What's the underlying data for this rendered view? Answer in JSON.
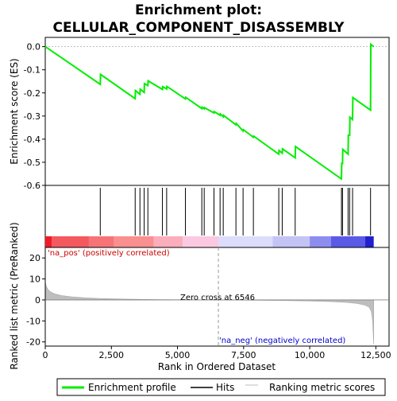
{
  "chart_data": {
    "type": "line",
    "title": "Enrichment plot: CELLULAR_COMPONENT_DISASSEMBLY",
    "title_lines": [
      "Enrichment plot:",
      "CELLULAR_COMPONENT_DISASSEMBLY"
    ],
    "top_panel": {
      "ylabel": "Enrichment score (ES)",
      "ylim": [
        -0.6,
        0.04
      ],
      "yticks": [
        0.0,
        -0.1,
        -0.2,
        -0.3,
        -0.4,
        -0.5,
        -0.6
      ],
      "ytick_labels": [
        "0.0",
        "-0.1",
        "-0.2",
        "-0.3",
        "-0.4",
        "-0.5",
        "-0.6"
      ],
      "line_color": "#00ee00",
      "series": [
        {
          "name": "Enrichment profile",
          "x": [
            0,
            2080,
            2090,
            3400,
            3410,
            3580,
            3590,
            3740,
            3750,
            3880,
            3890,
            4430,
            4440,
            4590,
            4600,
            5300,
            5310,
            5920,
            5930,
            6010,
            6020,
            6380,
            6390,
            6610,
            6620,
            6730,
            6740,
            7210,
            7220,
            7480,
            7490,
            7870,
            7880,
            8830,
            8840,
            8960,
            8970,
            9450,
            9460,
            11200,
            11210,
            11240,
            11250,
            11450,
            11460,
            11510,
            11520,
            11620,
            11630,
            12300,
            12310,
            12420
          ],
          "y": [
            0.0,
            -0.163,
            -0.12,
            -0.225,
            -0.19,
            -0.206,
            -0.184,
            -0.198,
            -0.16,
            -0.168,
            -0.148,
            -0.185,
            -0.173,
            -0.183,
            -0.172,
            -0.226,
            -0.219,
            -0.268,
            -0.262,
            -0.269,
            -0.264,
            -0.287,
            -0.281,
            -0.297,
            -0.291,
            -0.303,
            -0.297,
            -0.338,
            -0.332,
            -0.365,
            -0.359,
            -0.392,
            -0.387,
            -0.465,
            -0.449,
            -0.461,
            -0.442,
            -0.481,
            -0.432,
            -0.572,
            -0.505,
            -0.505,
            -0.444,
            -0.465,
            -0.383,
            -0.383,
            -0.305,
            -0.315,
            -0.22,
            -0.275,
            0.01,
            0.0
          ]
        }
      ]
    },
    "hits": [
      2080,
      3400,
      3580,
      3740,
      3880,
      4430,
      4590,
      5300,
      5920,
      6010,
      6380,
      6610,
      6730,
      7210,
      7480,
      7870,
      8830,
      8960,
      9450,
      11200,
      11240,
      11450,
      11510,
      11620,
      12300
    ],
    "color_bar": {
      "segments": [
        {
          "from": 0,
          "to": 250,
          "color": "#ee1c28"
        },
        {
          "from": 250,
          "to": 1650,
          "color": "#f4595f"
        },
        {
          "from": 1650,
          "to": 2600,
          "color": "#f67478"
        },
        {
          "from": 2600,
          "to": 4100,
          "color": "#f9908f"
        },
        {
          "from": 4100,
          "to": 5200,
          "color": "#fbadbb"
        },
        {
          "from": 5200,
          "to": 6546,
          "color": "#fbc8e1"
        },
        {
          "from": 6546,
          "to": 8600,
          "color": "#dcdcfb"
        },
        {
          "from": 8600,
          "to": 10000,
          "color": "#c3c3f6"
        },
        {
          "from": 10000,
          "to": 10800,
          "color": "#8d8df0"
        },
        {
          "from": 10800,
          "to": 12100,
          "color": "#5a5ae6"
        },
        {
          "from": 12100,
          "to": 12420,
          "color": "#2020cc"
        }
      ]
    },
    "bottom_panel": {
      "ylabel": "Ranked list metric (PreRanked)",
      "xlabel": "Rank in Ordered Dataset",
      "ylim": [
        -22,
        25
      ],
      "yticks": [
        20,
        10,
        0,
        -10,
        -20
      ],
      "ytick_labels": [
        "20",
        "10",
        "0",
        "-10",
        "-20"
      ],
      "xlim": [
        0,
        13000
      ],
      "xticks": [
        0,
        2500,
        5000,
        7500,
        10000,
        12500
      ],
      "xtick_labels": [
        "0",
        "2,500",
        "5,000",
        "7,500",
        "10,000",
        "12,500"
      ],
      "metric_x": [
        0,
        40,
        100,
        200,
        350,
        600,
        1000,
        1500,
        2000,
        3000,
        4000,
        5000,
        6000,
        6546,
        7000,
        8000,
        9000,
        10000,
        10800,
        11400,
        11800,
        12100,
        12250,
        12330,
        12380,
        12420
      ],
      "metric_y": [
        8.3,
        6.5,
        5.0,
        3.8,
        2.9,
        2.1,
        1.5,
        1.0,
        0.7,
        0.4,
        0.2,
        0.1,
        0.04,
        0.0,
        -0.05,
        -0.15,
        -0.3,
        -0.5,
        -0.8,
        -1.2,
        -1.7,
        -2.5,
        -3.5,
        -5.5,
        -10.0,
        -21.0
      ],
      "zero_cross_label": "Zero cross at 6546",
      "zero_cross_x": 6546,
      "pos_label": "'na_pos' (positively correlated)",
      "neg_label": "'na_neg' (negatively correlated)",
      "pos_color": "#cc0000",
      "neg_color": "#0000cc"
    },
    "legend": {
      "placement": "bottom",
      "items": [
        {
          "label": "Enrichment profile",
          "color": "#00ee00"
        },
        {
          "label": "Hits",
          "color": "#000000"
        },
        {
          "label": "Ranking metric scores",
          "color": "#bebebe"
        }
      ]
    },
    "grid": false
  }
}
